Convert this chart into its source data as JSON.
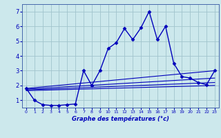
{
  "xlabel": "Graphe des températures (°c)",
  "background_color": "#cce8ec",
  "grid_color": "#a0c4cc",
  "line_color": "#0000bb",
  "spine_color": "#4466aa",
  "xlim": [
    -0.5,
    23.5
  ],
  "ylim": [
    0.5,
    7.5
  ],
  "xticks": [
    0,
    1,
    2,
    3,
    4,
    5,
    6,
    7,
    8,
    9,
    10,
    11,
    12,
    13,
    14,
    15,
    16,
    17,
    18,
    19,
    20,
    21,
    22,
    23
  ],
  "yticks": [
    1,
    2,
    3,
    4,
    5,
    6,
    7
  ],
  "main_series": {
    "x": [
      0,
      1,
      2,
      3,
      4,
      5,
      6,
      7,
      8,
      9,
      10,
      11,
      12,
      13,
      14,
      15,
      16,
      17,
      18,
      19,
      20,
      21,
      22,
      23
    ],
    "y": [
      1.8,
      1.0,
      0.7,
      0.65,
      0.65,
      0.7,
      0.75,
      3.0,
      2.0,
      3.0,
      4.5,
      4.9,
      5.85,
      5.1,
      5.9,
      7.0,
      5.1,
      6.0,
      3.5,
      2.6,
      2.5,
      2.2,
      2.05,
      3.0
    ]
  },
  "diagonal_lines": [
    {
      "x": [
        0,
        23
      ],
      "y": [
        1.8,
        3.0
      ]
    },
    {
      "x": [
        0,
        23
      ],
      "y": [
        1.75,
        2.5
      ]
    },
    {
      "x": [
        0,
        23
      ],
      "y": [
        1.7,
        2.2
      ]
    },
    {
      "x": [
        0,
        23
      ],
      "y": [
        1.65,
        2.0
      ]
    }
  ]
}
